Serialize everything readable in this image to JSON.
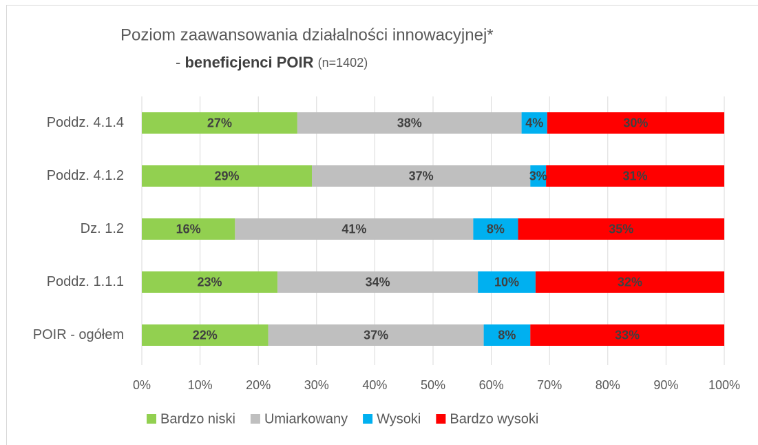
{
  "chart_data": {
    "type": "stacked_bar_horizontal",
    "title": "Poziom zaawansowania działalności innowacyjnej*",
    "subtitle": {
      "dash": "-",
      "bold": "beneficjenci POIR",
      "note": "(n=1402)"
    },
    "categories": [
      "Poddz. 4.1.4",
      "Poddz. 4.1.2",
      "Dz. 1.2",
      "Poddz. 1.1.1",
      "POIR - ogółem"
    ],
    "series": [
      {
        "name": "Bardzo niski",
        "color": "#92d050",
        "values": [
          26.7,
          29.2,
          16.0,
          23.3,
          21.7
        ],
        "value_labels": [
          "27%",
          "29%",
          "16%",
          "23%",
          "22%"
        ]
      },
      {
        "name": "Umiarkowany",
        "color": "#bfbfbf",
        "values": [
          38.5,
          37.5,
          40.9,
          34.4,
          37.0
        ],
        "value_labels": [
          "38%",
          "37%",
          "41%",
          "34%",
          "37%"
        ]
      },
      {
        "name": "Wysoki",
        "color": "#00b0f0",
        "values": [
          4.4,
          2.7,
          7.7,
          9.9,
          8.0
        ],
        "value_labels": [
          "4%",
          "3%",
          "8%",
          "10%",
          "8%"
        ]
      },
      {
        "name": "Bardzo wysoki",
        "color": "#ff0000",
        "values": [
          30.4,
          30.6,
          35.4,
          32.4,
          33.3
        ],
        "value_labels": [
          "30%",
          "31%",
          "35%",
          "32%",
          "33%"
        ]
      }
    ],
    "xlim": [
      0,
      100
    ],
    "xticks": [
      {
        "value": 0,
        "label": "0%"
      },
      {
        "value": 10,
        "label": "10%"
      },
      {
        "value": 20,
        "label": "20%"
      },
      {
        "value": 30,
        "label": "30%"
      },
      {
        "value": 40,
        "label": "40%"
      },
      {
        "value": 50,
        "label": "50%"
      },
      {
        "value": 60,
        "label": "60%"
      },
      {
        "value": 70,
        "label": "70%"
      },
      {
        "value": 80,
        "label": "80%"
      },
      {
        "value": 90,
        "label": "90%"
      },
      {
        "value": 100,
        "label": "100%"
      }
    ],
    "grid": true,
    "legend": "bottom"
  }
}
